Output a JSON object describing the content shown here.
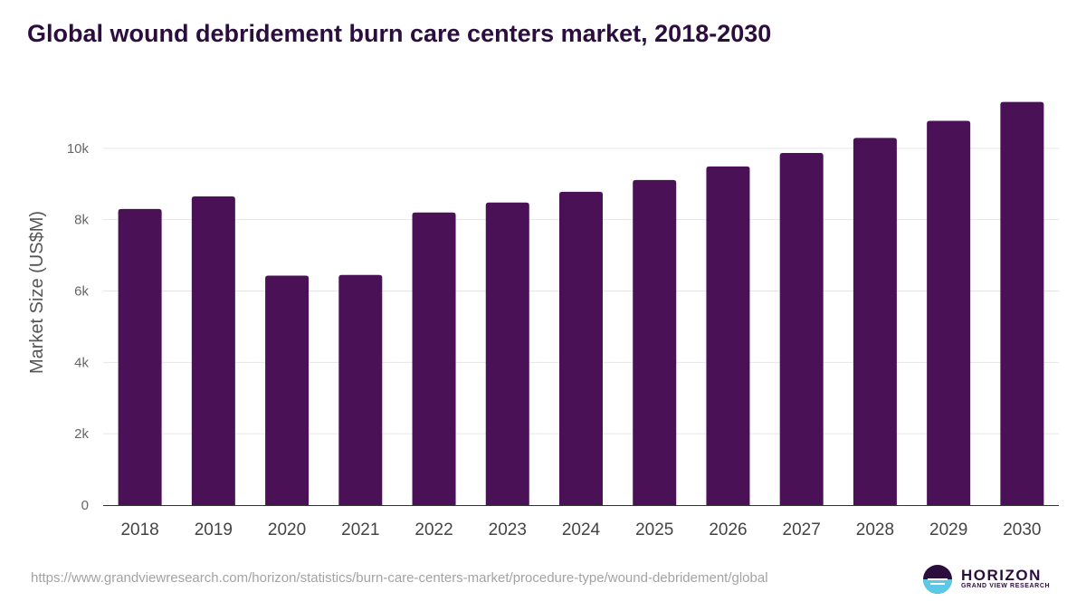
{
  "title": "Global wound debridement burn care centers market, 2018-2030",
  "source_url": "https://www.grandviewresearch.com/horizon/statistics/burn-care-centers-market/procedure-type/wound-debridement/global",
  "logo": {
    "name": "HORIZON",
    "subtitle": "GRAND VIEW RESEARCH"
  },
  "colors": {
    "bar": "#4a1157",
    "title": "#2b0d3e",
    "logo_accent": "#5bc8e8"
  },
  "chart_data": {
    "type": "bar",
    "title": "Global wound debridement burn care centers market, 2018-2030",
    "xlabel": "",
    "ylabel": "Market Size (US$M)",
    "categories": [
      "2018",
      "2019",
      "2020",
      "2021",
      "2022",
      "2023",
      "2024",
      "2025",
      "2026",
      "2027",
      "2028",
      "2029",
      "2030"
    ],
    "values": [
      8300,
      8650,
      6430,
      6450,
      8200,
      8480,
      8780,
      9110,
      9490,
      9870,
      10290,
      10770,
      11300
    ],
    "ylim": [
      0,
      12000
    ],
    "yticks": [
      0,
      2000,
      4000,
      6000,
      8000,
      10000
    ],
    "ytick_labels": [
      "0",
      "2k",
      "4k",
      "6k",
      "8k",
      "10k"
    ],
    "grid": true,
    "legend": "none"
  }
}
